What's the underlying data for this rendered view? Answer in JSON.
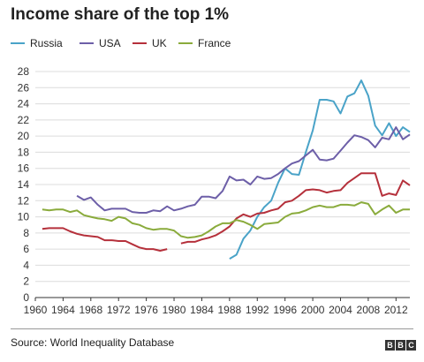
{
  "title": "Income share of the top 1%",
  "source": "Source: World Inequality Database",
  "logo": [
    "B",
    "B",
    "C"
  ],
  "colors": {
    "Russia": "#4aa3c8",
    "USA": "#6d5fa8",
    "UK": "#b5303b",
    "France": "#8aab3c",
    "grid": "#dcdcdc"
  },
  "chart_data": {
    "type": "line",
    "title": "Income share of the top 1%",
    "xlim": [
      1960,
      2014
    ],
    "ylim": [
      0,
      28
    ],
    "xticks": [
      "1960",
      "1964",
      "1968",
      "1972",
      "1976",
      "1980",
      "1984",
      "1988",
      "1992",
      "1996",
      "2000",
      "2004",
      "2008",
      "2012"
    ],
    "yticks": [
      "0",
      "2",
      "4",
      "6",
      "8",
      "10",
      "12",
      "14",
      "16",
      "18",
      "20",
      "22",
      "24",
      "26",
      "28"
    ],
    "grid": "horizontal",
    "legend_position": "top-left",
    "series": [
      {
        "name": "Russia",
        "color": "#4aa3c8",
        "x": [
          1988,
          1989,
          1990,
          1991,
          1992,
          1993,
          1994,
          1995,
          1996,
          1997,
          1998,
          1999,
          2000,
          2001,
          2002,
          2003,
          2004,
          2005,
          2006,
          2007,
          2008,
          2009,
          2010,
          2011,
          2012,
          2013,
          2014
        ],
        "y": [
          4.8,
          5.3,
          7.3,
          8.3,
          10.0,
          11.2,
          12.0,
          14.2,
          16.0,
          15.3,
          15.2,
          18.0,
          20.7,
          24.5,
          24.5,
          24.3,
          22.8,
          24.9,
          25.3,
          26.9,
          25.0,
          21.3,
          20.1,
          21.6,
          20.0,
          21.1,
          20.5
        ]
      },
      {
        "name": "USA",
        "color": "#6d5fa8",
        "x": [
          1966,
          1967,
          1968,
          1969,
          1970,
          1971,
          1972,
          1973,
          1974,
          1975,
          1976,
          1977,
          1978,
          1979,
          1980,
          1981,
          1982,
          1983,
          1984,
          1985,
          1986,
          1987,
          1988,
          1989,
          1990,
          1991,
          1992,
          1993,
          1994,
          1995,
          1996,
          1997,
          1998,
          1999,
          2000,
          2001,
          2002,
          2003,
          2004,
          2005,
          2006,
          2007,
          2008,
          2009,
          2010,
          2011,
          2012,
          2013,
          2014
        ],
        "y": [
          12.6,
          12.1,
          12.4,
          11.5,
          10.8,
          11.0,
          11.0,
          11.0,
          10.6,
          10.5,
          10.5,
          10.8,
          10.7,
          11.3,
          10.8,
          11.0,
          11.3,
          11.5,
          12.5,
          12.5,
          12.3,
          13.2,
          15.0,
          14.5,
          14.6,
          14.0,
          15.0,
          14.7,
          14.8,
          15.3,
          16.0,
          16.6,
          16.9,
          17.6,
          18.3,
          17.1,
          17.0,
          17.2,
          18.2,
          19.2,
          20.1,
          19.9,
          19.5,
          18.6,
          19.8,
          19.6,
          21.1,
          19.6,
          20.2
        ]
      },
      {
        "name": "UK",
        "color": "#b5303b",
        "x": [
          1961,
          1962,
          1963,
          1964,
          1965,
          1966,
          1967,
          1968,
          1969,
          1970,
          1971,
          1972,
          1973,
          1974,
          1975,
          1976,
          1977,
          1978,
          1979
        ],
        "y": [
          8.5,
          8.6,
          8.6,
          8.6,
          8.2,
          7.9,
          7.7,
          7.6,
          7.5,
          7.1,
          7.1,
          7.0,
          7.0,
          6.6,
          6.2,
          6.0,
          6.0,
          5.8,
          6.0
        ]
      },
      {
        "name": "UK",
        "color": "#b5303b",
        "x": [
          1981,
          1982,
          1983,
          1984,
          1985,
          1986,
          1987,
          1988,
          1989,
          1990,
          1991,
          1992,
          1993,
          1994,
          1995,
          1996,
          1997,
          1998,
          1999,
          2000,
          2001,
          2002,
          2003,
          2004,
          2005,
          2006,
          2007,
          2008,
          2009,
          2010,
          2011,
          2012,
          2013,
          2014
        ],
        "y": [
          6.7,
          6.9,
          6.9,
          7.2,
          7.4,
          7.7,
          8.2,
          8.8,
          9.8,
          10.3,
          10.0,
          10.4,
          10.5,
          10.8,
          11.0,
          11.8,
          12.0,
          12.6,
          13.3,
          13.4,
          13.3,
          13.0,
          13.2,
          13.3,
          14.2,
          14.8,
          15.4,
          15.4,
          15.4,
          12.6,
          12.9,
          12.7,
          14.5,
          13.9
        ]
      },
      {
        "name": "France",
        "color": "#8aab3c",
        "x": [
          1961,
          1962,
          1963,
          1964,
          1965,
          1966,
          1967,
          1968,
          1969,
          1970,
          1971,
          1972,
          1973,
          1974,
          1975,
          1976,
          1977,
          1978,
          1979,
          1980,
          1981,
          1982,
          1983,
          1984,
          1985,
          1986,
          1987,
          1988,
          1989,
          1990,
          1991,
          1992,
          1993,
          1994,
          1995,
          1996,
          1997,
          1998,
          1999,
          2000,
          2001,
          2002,
          2003,
          2004,
          2005,
          2006,
          2007,
          2008,
          2009,
          2010,
          2011,
          2012,
          2013,
          2014
        ],
        "y": [
          10.9,
          10.8,
          10.9,
          10.9,
          10.6,
          10.8,
          10.2,
          10.0,
          9.8,
          9.7,
          9.5,
          10.0,
          9.8,
          9.2,
          9.0,
          8.6,
          8.4,
          8.5,
          8.5,
          8.3,
          7.6,
          7.4,
          7.5,
          7.7,
          8.2,
          8.8,
          9.2,
          9.2,
          9.6,
          9.4,
          9.0,
          8.5,
          9.1,
          9.2,
          9.3,
          10.0,
          10.4,
          10.5,
          10.8,
          11.2,
          11.4,
          11.2,
          11.2,
          11.5,
          11.5,
          11.4,
          11.8,
          11.6,
          10.3,
          10.9,
          11.4,
          10.5,
          10.9,
          10.9
        ]
      }
    ]
  }
}
